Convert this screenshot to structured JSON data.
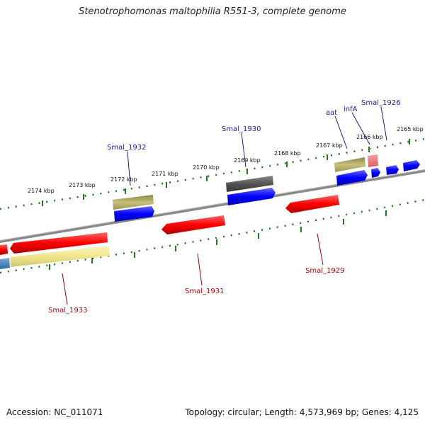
{
  "title": "Stenotrophomonas maltophilia R551-3, complete genome",
  "footer": {
    "accession": "Accession: NC_011071",
    "stats": "Topology: circular; Length: 4,573,969 bp; Genes: 4,125"
  },
  "ticks": [
    "2165 kbp",
    "2166 kbp",
    "2167 kbp",
    "2168 kbp",
    "2169 kbp",
    "2170 kbp",
    "2171 kbp",
    "2172 kbp",
    "2173 kbp",
    "2174 kbp"
  ],
  "genes": {
    "forward": [
      "Smal_1926",
      "infA",
      "aat",
      "Smal_1930",
      "Smal_1932"
    ],
    "reverse": [
      "Smal_1929",
      "Smal_1931",
      "Smal_1933"
    ]
  },
  "colors": {
    "cds": "#0000ff",
    "cds_reverse": "#ff0000",
    "trna": "#b8b070",
    "rna_light": "#f08080",
    "gray_feature": "#555555",
    "pale": "#f0e68c",
    "steel": "#4682b4",
    "backbone": "#888888",
    "tick": "#1e7a1e"
  }
}
